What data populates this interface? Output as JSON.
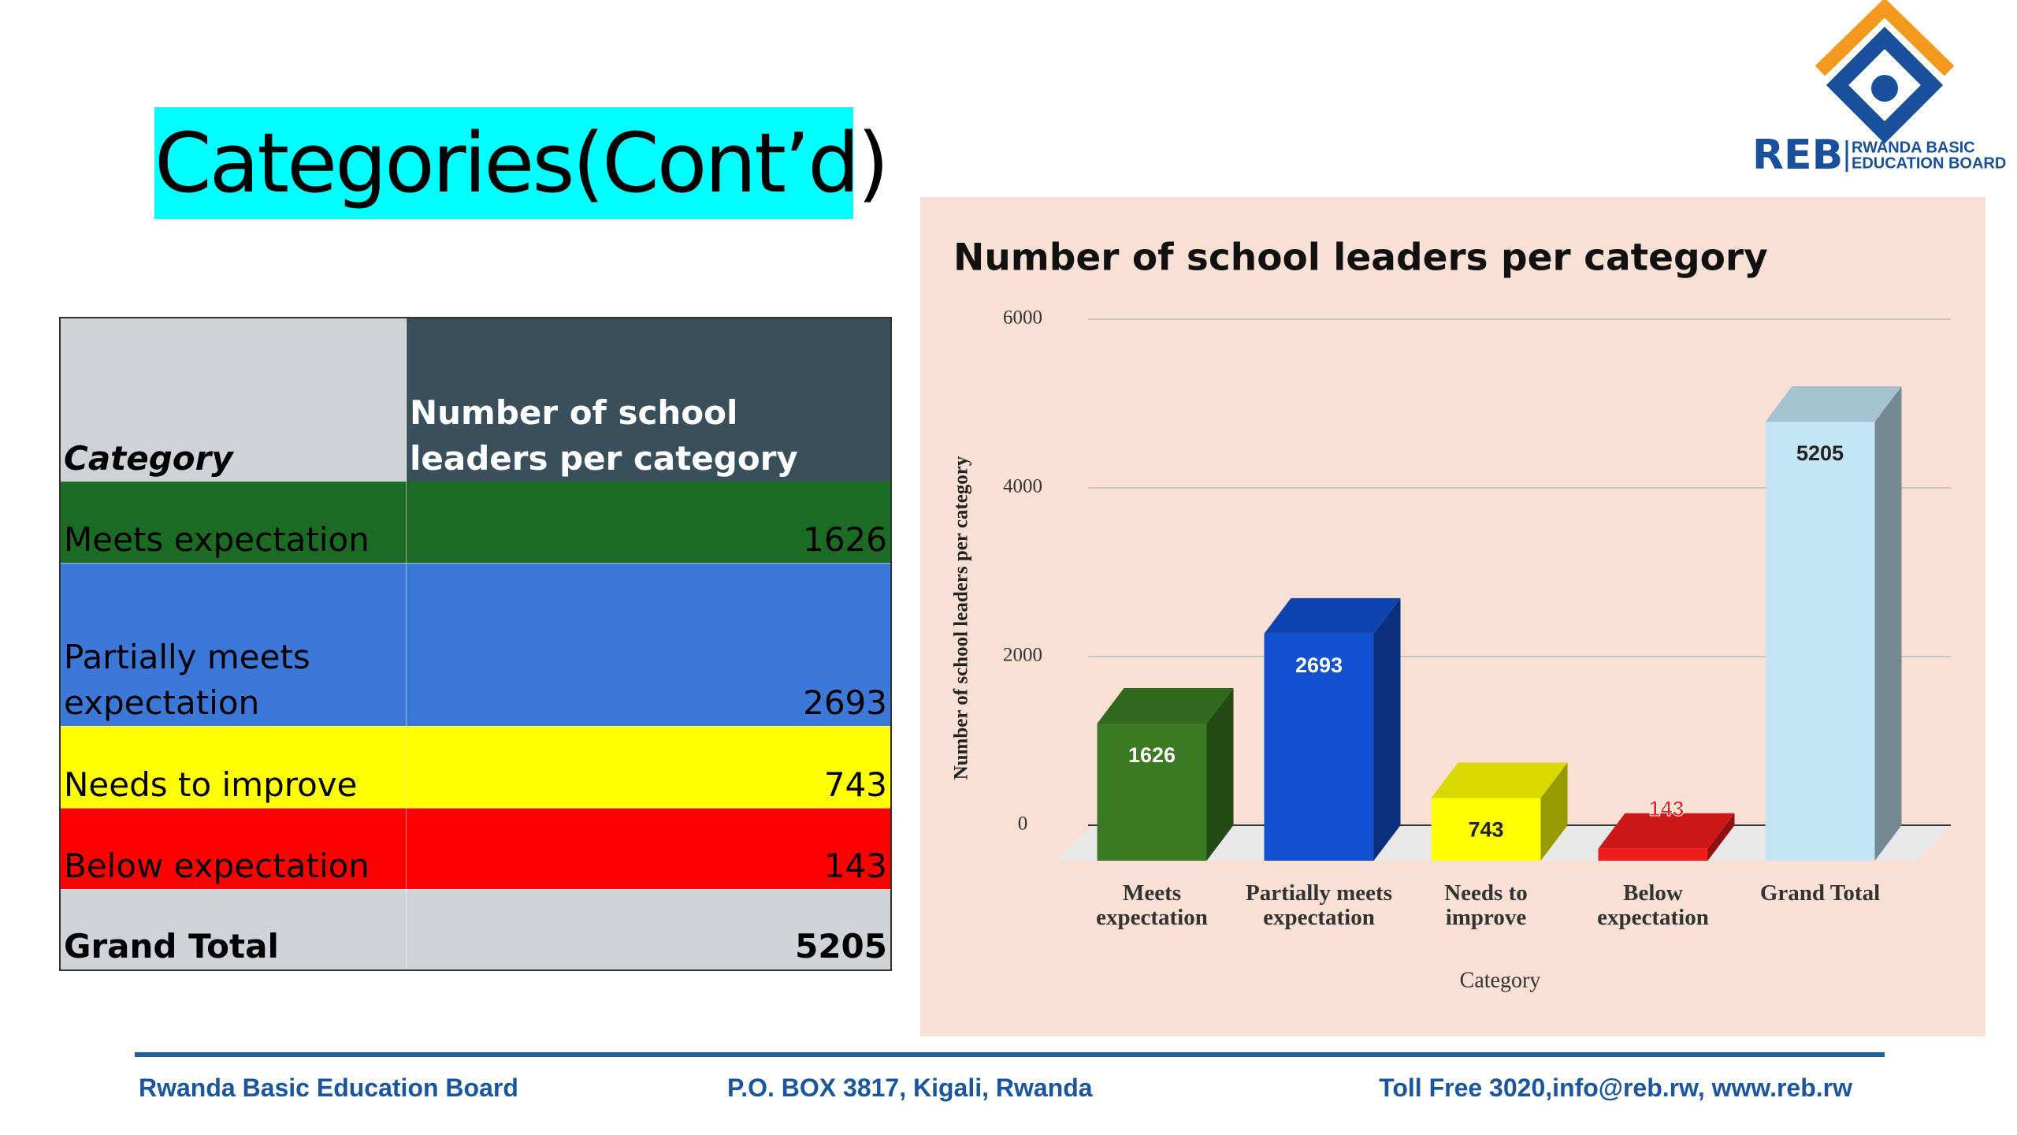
{
  "title": "Categories(Cont’d)",
  "logo": {
    "abbr": "REB",
    "name_line1": "RWANDA BASIC",
    "name_line2": "EDUCATION BOARD"
  },
  "table": {
    "header": [
      "Category",
      "Number of school leaders per category"
    ],
    "rows": [
      [
        "Meets expectation",
        1626
      ],
      [
        "Partially meets expectation",
        2693
      ],
      [
        "Needs to improve",
        743
      ],
      [
        "Below expectation",
        143
      ],
      [
        "Grand Total",
        5205
      ]
    ],
    "row_colors": [
      "#1b6b24",
      "#3c78d8",
      "#ffff00",
      "#ff0000",
      "#cfd3d6"
    ]
  },
  "chart_data": {
    "type": "bar",
    "title": "Number of school leaders per category",
    "categories": [
      "Meets expectation",
      "Partially meets expectation",
      "Needs to improve",
      "Below expectation",
      "Grand Total"
    ],
    "values": [
      1626,
      2693,
      743,
      143,
      5205
    ],
    "colors": [
      "#3a7a22",
      "#1150d0",
      "#ffff00",
      "#f01c1c",
      "#c2e4f5"
    ],
    "ylim": [
      0,
      6000
    ],
    "yticks": [
      0,
      2000,
      4000,
      6000
    ],
    "grid": true,
    "xlabel": "Category",
    "ylabel": "Number of school leaders per category"
  },
  "footer": [
    "Rwanda Basic Education Board",
    "P.O. BOX 3817, Kigali, Rwanda",
    "Toll Free 3020,info@reb.rw, www.reb.rw"
  ]
}
